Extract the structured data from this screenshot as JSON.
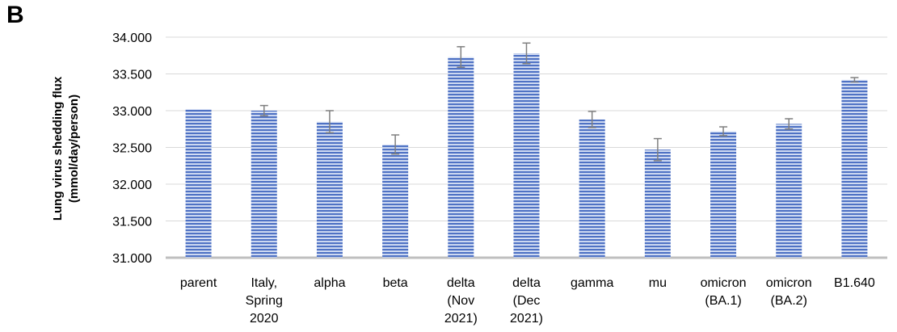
{
  "panel_label": "B",
  "chart_data": {
    "type": "bar",
    "title": "",
    "ylabel_lines": [
      "Lung virus shedding flux",
      "(mmol/day/person)"
    ],
    "xlabel": "",
    "ylim": [
      31.0,
      34.0
    ],
    "yticks": [
      31.0,
      31.5,
      32.0,
      32.5,
      33.0,
      33.5,
      34.0
    ],
    "ytick_labels": [
      "31.000",
      "31.500",
      "32.000",
      "32.500",
      "33.000",
      "33.500",
      "34.000"
    ],
    "grid": "horizontal",
    "categories": [
      [
        "parent"
      ],
      [
        "Italy,",
        "Spring",
        "2020"
      ],
      [
        "alpha"
      ],
      [
        "beta"
      ],
      [
        "delta",
        "(Nov",
        "2021)"
      ],
      [
        "delta",
        "(Dec",
        "2021)"
      ],
      [
        "gamma"
      ],
      [
        "mu"
      ],
      [
        "omicron",
        "(BA.1)"
      ],
      [
        "omicron",
        "(BA.2)"
      ],
      [
        "B1.640"
      ]
    ],
    "values": [
      33.02,
      33.0,
      32.85,
      32.54,
      33.73,
      33.78,
      32.88,
      32.47,
      32.72,
      32.82,
      33.42
    ],
    "errors": [
      0.0,
      0.07,
      0.15,
      0.13,
      0.14,
      0.14,
      0.11,
      0.15,
      0.06,
      0.07,
      0.03
    ],
    "bar_color": "#4f72c4",
    "stripe_color": "#dbe4f6",
    "error_color": "#7f7f7f"
  }
}
